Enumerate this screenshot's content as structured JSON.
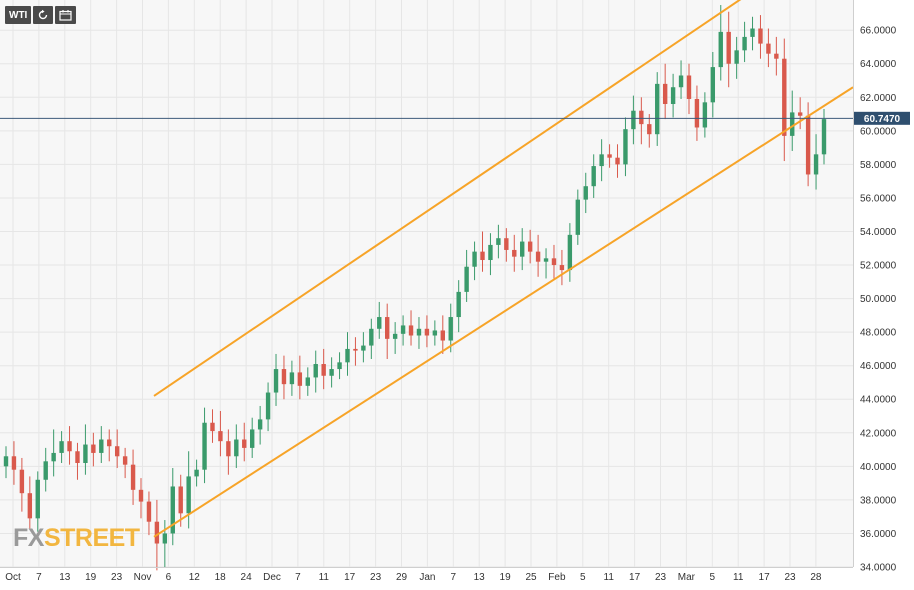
{
  "toolbar": {
    "symbol_label": "WTI",
    "refresh_icon": "refresh-icon",
    "calendar_icon": "calendar-icon"
  },
  "watermark": {
    "part1": "FX",
    "part2": "STREET"
  },
  "colors": {
    "up": "#3a9a6b",
    "down": "#d9594c",
    "channel": "#f7a428",
    "price_line": "#3c5a7a",
    "price_label_bg": "#2f4f6f",
    "grid": "#e6e6e6",
    "plot_bg": "#f7f7f7"
  },
  "chart_data": {
    "type": "candlestick",
    "title": "",
    "instrument": "WTI",
    "ylim": [
      34,
      67.8
    ],
    "y_ticks": [
      "34.0000",
      "36.0000",
      "38.0000",
      "40.0000",
      "42.0000",
      "44.0000",
      "46.0000",
      "48.0000",
      "50.0000",
      "52.0000",
      "54.0000",
      "56.0000",
      "58.0000",
      "60.0000",
      "62.0000",
      "64.0000",
      "66.0000"
    ],
    "x_ticks": [
      "Oct",
      "7",
      "13",
      "19",
      "23",
      "Nov",
      "6",
      "12",
      "18",
      "24",
      "Dec",
      "7",
      "11",
      "17",
      "23",
      "29",
      "Jan",
      "7",
      "13",
      "19",
      "25",
      "Feb",
      "5",
      "11",
      "17",
      "23",
      "Mar",
      "5",
      "11",
      "17",
      "23",
      "28"
    ],
    "current_price": 60.747,
    "current_price_label": "60.7470",
    "grid": true,
    "channel": {
      "upper_start": 44.2,
      "upper_end": 67.9,
      "lower_start": 35.8,
      "lower_end": 62.6
    },
    "close_start": 40.0,
    "closes": [
      40.6,
      39.8,
      38.4,
      36.9,
      39.2,
      40.3,
      40.8,
      41.5,
      40.9,
      40.2,
      41.3,
      40.8,
      41.6,
      41.2,
      40.6,
      40.1,
      38.6,
      37.9,
      36.7,
      35.4,
      36.0,
      38.8,
      37.2,
      39.4,
      39.8,
      42.6,
      42.1,
      41.5,
      40.6,
      41.6,
      41.1,
      42.2,
      42.8,
      44.4,
      45.8,
      44.9,
      45.6,
      44.8,
      45.3,
      46.1,
      45.4,
      45.8,
      46.2,
      47.0,
      46.9,
      47.2,
      48.2,
      48.9,
      47.6,
      47.9,
      48.4,
      47.8,
      48.2,
      47.8,
      48.1,
      47.5,
      48.9,
      50.4,
      51.9,
      52.8,
      52.3,
      53.2,
      53.6,
      52.9,
      52.5,
      53.4,
      52.8,
      52.2,
      52.4,
      52.0,
      51.7,
      53.8,
      55.9,
      56.7,
      57.9,
      58.6,
      58.4,
      58.0,
      60.1,
      61.2,
      60.4,
      59.8,
      62.8,
      61.6,
      62.6,
      63.3,
      61.9,
      60.2,
      61.7,
      63.8,
      65.9,
      64.0,
      64.8,
      65.6,
      66.1,
      65.2,
      64.6,
      64.3,
      59.7,
      61.1,
      60.9,
      57.4,
      58.6,
      60.7
    ],
    "highs_extra": [
      0.6,
      0.9,
      0.7,
      1.0,
      0.5,
      0.8,
      1.4,
      0.6,
      0.9,
      0.5,
      1.2,
      0.7,
      0.8,
      0.6,
      1.0,
      0.5,
      0.9,
      0.7,
      0.6,
      1.3,
      0.8,
      1.1,
      0.7,
      1.5,
      0.6,
      0.9,
      0.8,
      1.2,
      0.7,
      0.9,
      1.0,
      0.7,
      0.8,
      0.6,
      0.9,
      0.8,
      0.7,
      1.0,
      0.6,
      0.8,
      0.9,
      0.7,
      0.6,
      1.0,
      0.7,
      0.8,
      0.6,
      0.9,
      0.8,
      0.7,
      0.6,
      0.9,
      0.7,
      0.8,
      0.6,
      0.9,
      0.8,
      0.7,
      1.0,
      0.6,
      1.2,
      0.7,
      0.8,
      0.6,
      0.9,
      0.8,
      0.7,
      1.0,
      0.6,
      0.8,
      0.9,
      0.7,
      0.6,
      0.8,
      0.7,
      0.9,
      0.6,
      0.8,
      0.7,
      0.9,
      0.8,
      0.6,
      0.7,
      1.2,
      0.8,
      0.9,
      0.7,
      0.8,
      0.6,
      0.9,
      1.6,
      1.2,
      0.8,
      0.9,
      0.7,
      0.8,
      0.9,
      1.0,
      1.2,
      1.3,
      0.9,
      0.8,
      1.2,
      0.6
    ],
    "lows_extra": [
      0.7,
      0.9,
      1.1,
      0.6,
      0.8,
      0.7,
      0.9,
      0.6,
      0.8,
      1.0,
      0.7,
      0.8,
      0.6,
      0.9,
      0.7,
      0.8,
      0.9,
      1.0,
      0.8,
      1.6,
      1.4,
      0.7,
      0.8,
      0.9,
      0.6,
      0.8,
      0.7,
      0.9,
      1.1,
      0.7,
      0.8,
      0.6,
      0.9,
      0.7,
      0.8,
      0.9,
      0.7,
      0.8,
      0.6,
      0.9,
      0.8,
      0.7,
      0.6,
      0.8,
      0.9,
      0.7,
      0.8,
      0.6,
      1.2,
      0.9,
      0.7,
      0.6,
      0.8,
      0.7,
      0.6,
      0.8,
      0.7,
      0.9,
      0.6,
      0.8,
      0.7,
      0.9,
      0.8,
      0.7,
      0.9,
      0.8,
      0.7,
      0.9,
      1.0,
      0.8,
      0.9,
      0.7,
      0.6,
      0.8,
      0.7,
      0.9,
      0.6,
      0.8,
      0.7,
      0.9,
      1.2,
      0.8,
      0.7,
      0.9,
      0.8,
      0.7,
      0.9,
      0.8,
      0.6,
      0.9,
      0.8,
      1.4,
      0.9,
      0.7,
      0.8,
      0.9,
      0.8,
      1.0,
      1.5,
      0.9,
      0.8,
      0.7,
      0.9,
      0.6
    ]
  }
}
